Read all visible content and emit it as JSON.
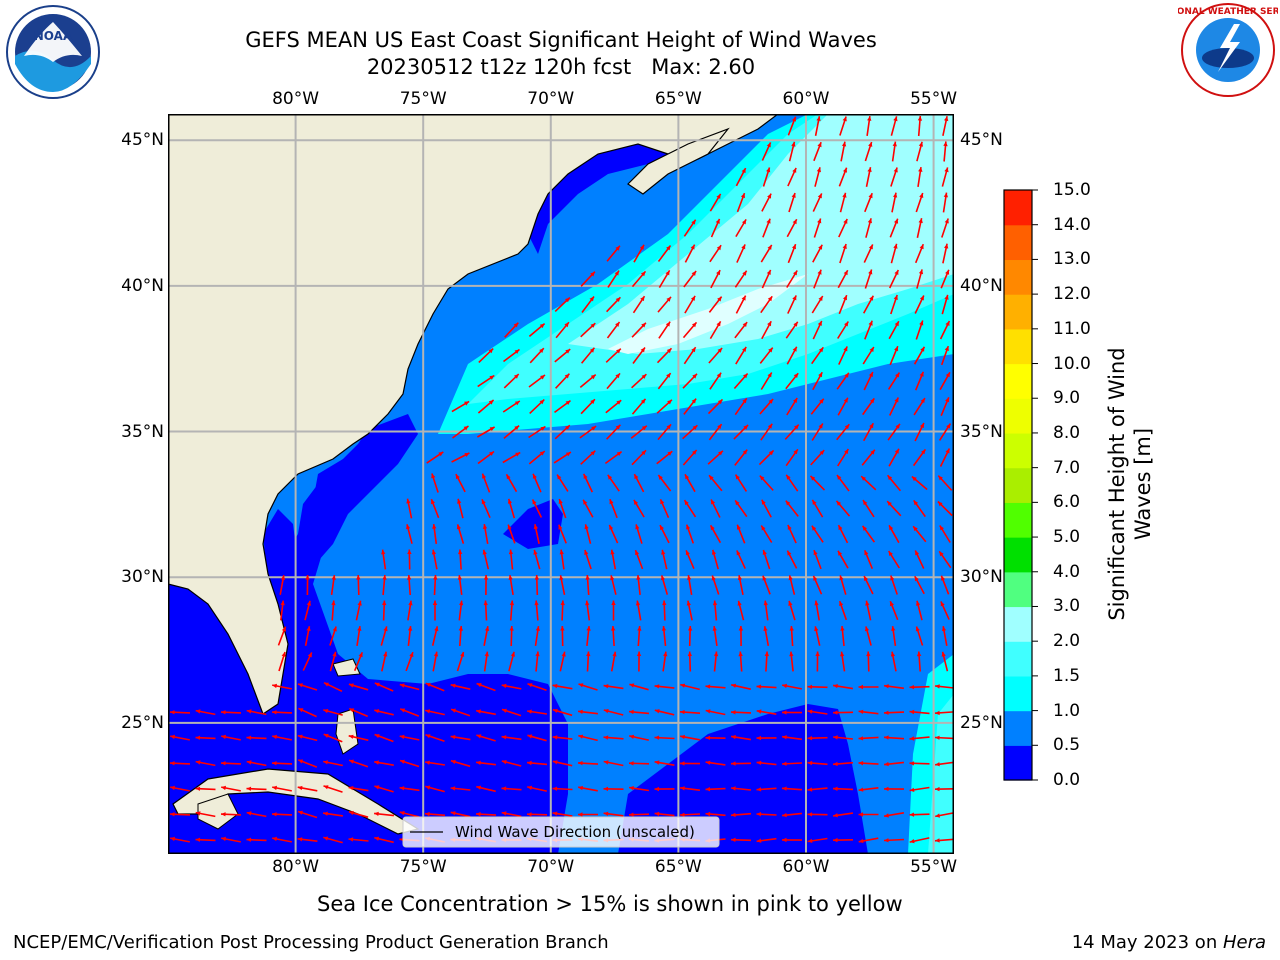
{
  "title": {
    "line1": "GEFS MEAN US East Coast Significant Height of Wind Waves",
    "line2": "20230512 t12z 120h fcst   Max: 2.60"
  },
  "logos": {
    "left": {
      "icon": "noaa-logo",
      "text": "NOAA"
    },
    "right": {
      "icon": "national-weather-service-logo",
      "ring_text": "NATIONAL WEATHER SERVICE"
    }
  },
  "map": {
    "lon_range": [
      -85,
      -54.2
    ],
    "lat_range": [
      20.5,
      45.9
    ],
    "lon_ticks": [
      {
        "value": -80,
        "label": "80°W"
      },
      {
        "value": -75,
        "label": "75°W"
      },
      {
        "value": -70,
        "label": "70°W"
      },
      {
        "value": -65,
        "label": "65°W"
      },
      {
        "value": -60,
        "label": "60°W"
      },
      {
        "value": -55,
        "label": "55°W"
      }
    ],
    "lat_ticks": [
      {
        "value": 45,
        "label": "45°N"
      },
      {
        "value": 40,
        "label": "40°N"
      },
      {
        "value": 35,
        "label": "35°N"
      },
      {
        "value": 30,
        "label": "30°N"
      },
      {
        "value": 25,
        "label": "25°N"
      }
    ],
    "colors": {
      "land": "#efedd9",
      "coast": "#000000",
      "grid": "#b4b4b4",
      "arrow": "#ff0000"
    },
    "wave_field": {
      "unit": "m",
      "value_bands": [
        {
          "range": [
            0.0,
            0.5
          ],
          "color": "#0000ff",
          "region": "gulf-of-mexico-and-bahamas-and-south-central"
        },
        {
          "range": [
            0.5,
            1.0
          ],
          "color": "#0080ff",
          "region": "open-atlantic"
        },
        {
          "range": [
            1.0,
            1.5
          ],
          "color": "#00ffff",
          "region": "gulf-stream-band"
        },
        {
          "range": [
            1.5,
            2.0
          ],
          "color": "#40ffff",
          "region": "northeast-atlantic"
        },
        {
          "range": [
            2.0,
            3.0
          ],
          "color": "#a0ffff",
          "region": "north-of-38N-between-65W-and-55W"
        },
        {
          "range": [
            2.5,
            2.6
          ],
          "color": "#e0ffff",
          "region": "maximum-near-38N-64W"
        }
      ],
      "max": 2.6
    },
    "wind_direction": "mostly-toward-north-east-in-north, toward-west-in-gulf-and-south",
    "legend": {
      "label": "Wind Wave Direction (unscaled)",
      "placement": "bottom-center"
    }
  },
  "colorbar": {
    "label_line1": "Significant Height of Wind",
    "label_line2": "Waves [m]",
    "levels": [
      "0.0",
      "0.5",
      "1.0",
      "1.5",
      "2.0",
      "3.0",
      "4.0",
      "5.0",
      "6.0",
      "7.0",
      "8.0",
      "9.0",
      "10.0",
      "11.0",
      "12.0",
      "13.0",
      "14.0",
      "15.0"
    ],
    "colors": [
      "#0000ff",
      "#0080ff",
      "#00ffff",
      "#40ffff",
      "#a0ffff",
      "#50ff80",
      "#00e000",
      "#50ff00",
      "#aaee00",
      "#ccff00",
      "#eeff00",
      "#ffff00",
      "#ffe000",
      "#ffb000",
      "#ff8800",
      "#ff6000",
      "#ff2000",
      "#ff0000"
    ]
  },
  "subtitle": "Sea Ice Concentration > 15% is shown in pink to yellow",
  "footer": {
    "left": "NCEP/EMC/Verification Post Processing Product Generation Branch",
    "right_date": "14 May 2023 on ",
    "right_host": "Hera"
  }
}
